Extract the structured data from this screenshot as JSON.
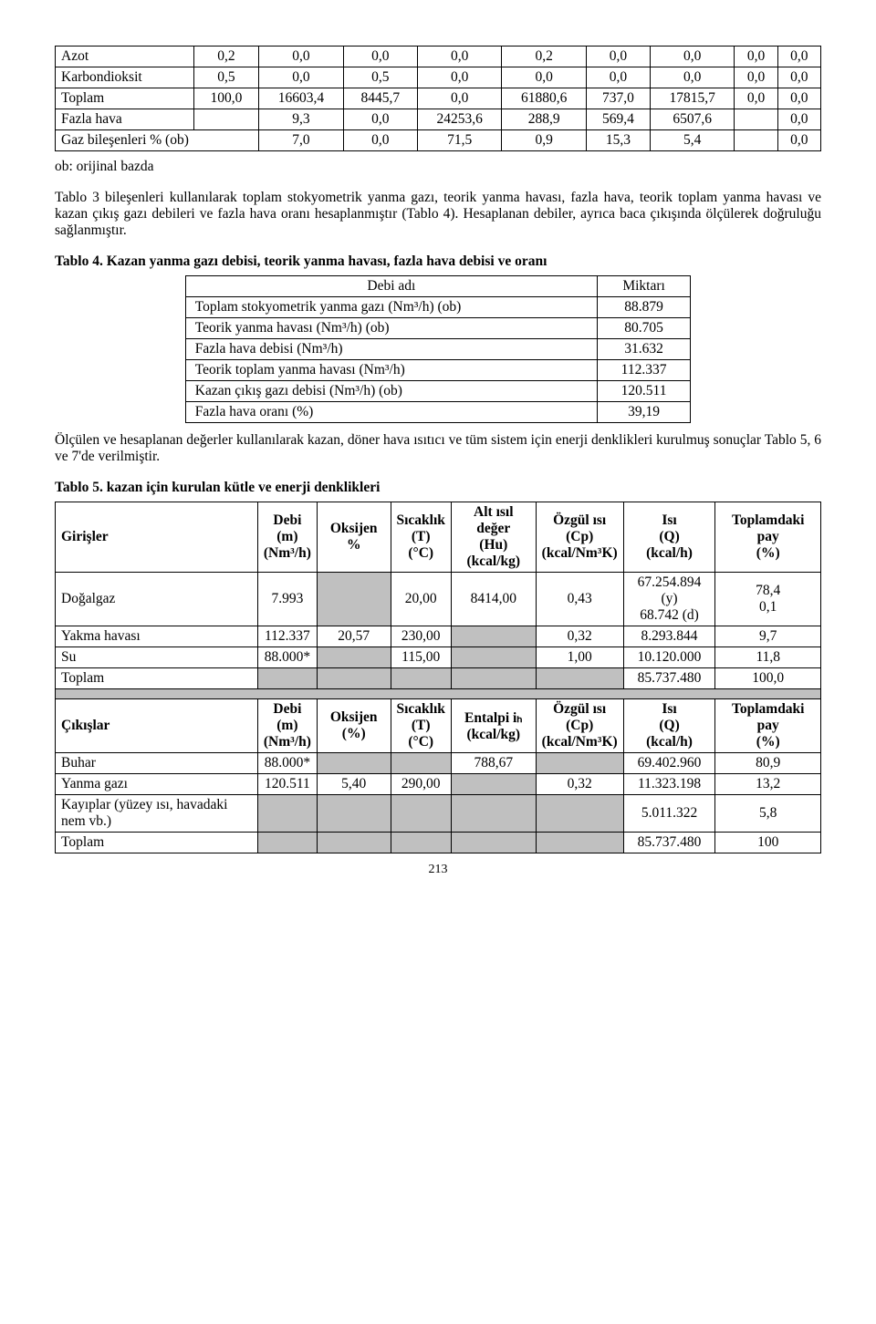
{
  "table1": {
    "rows": [
      {
        "label": "Azot",
        "vals": [
          "0,2",
          "0,0",
          "0,0",
          "0,0",
          "0,2",
          "0,0",
          "0,0",
          "0,0",
          "0,0"
        ]
      },
      {
        "label": "Karbondioksit",
        "vals": [
          "0,5",
          "0,0",
          "0,5",
          "0,0",
          "0,0",
          "0,0",
          "0,0",
          "0,0",
          "0,0"
        ]
      },
      {
        "label": "Toplam",
        "vals": [
          "100,0",
          "16603,4",
          "8445,7",
          "0,0",
          "61880,6",
          "737,0",
          "17815,7",
          "0,0",
          "0,0"
        ]
      },
      {
        "label": "Fazla hava",
        "vals": [
          "",
          "9,3",
          "0,0",
          "24253,6",
          "288,9",
          "569,4",
          "6507,6",
          "",
          "0,0"
        ]
      }
    ],
    "gaz_row": {
      "label": "Gaz bileşenleri % (ob)",
      "vals": [
        "7,0",
        "0,0",
        "71,5",
        "0,9",
        "15,3",
        "5,4",
        "",
        "0,0"
      ]
    }
  },
  "note1": "ob: orijinal bazda",
  "para1": "Tablo 3 bileşenleri kullanılarak toplam stokyometrik yanma gazı, teorik yanma havası, fazla hava, teorik toplam yanma havası ve kazan çıkış gazı debileri ve fazla hava oranı hesaplanmıştır (Tablo 4). Hesaplanan debiler, ayrıca baca çıkışında ölçülerek doğruluğu sağlanmıştır.",
  "table4_caption": "Tablo 4. Kazan yanma gazı debisi, teorik yanma havası, fazla hava debisi ve oranı",
  "table4": {
    "header": [
      "Debi adı",
      "Miktarı"
    ],
    "rows": [
      [
        "Toplam stokyometrik yanma gazı (Nm³/h) (ob)",
        "88.879"
      ],
      [
        "Teorik yanma havası (Nm³/h) (ob)",
        "80.705"
      ],
      [
        "Fazla hava debisi (Nm³/h)",
        "31.632"
      ],
      [
        "Teorik toplam yanma havası (Nm³/h)",
        "112.337"
      ],
      [
        "Kazan çıkış gazı debisi (Nm³/h) (ob)",
        "120.511"
      ],
      [
        "Fazla hava oranı (%)",
        "39,19"
      ]
    ]
  },
  "para2": "Ölçülen ve hesaplanan değerler kullanılarak kazan, döner hava ısıtıcı ve tüm sistem için enerji denklikleri kurulmuş sonuçlar Tablo 5, 6 ve 7'de verilmiştir.",
  "table5_caption": "Tablo 5. kazan için kurulan kütle ve enerji denklikleri",
  "table5": {
    "head1": [
      "Girişler",
      "Debi (m) (Nm³/h)",
      "Oksijen %",
      "Sıcaklık (T) (°C)",
      "Alt ısıl değer (Hu) (kcal/kg)",
      "Özgül ısı (Cp) (kcal/Nm³K)",
      "Isı (Q) (kcal/h)",
      "Toplamdaki pay (%)"
    ],
    "girisler": [
      {
        "label": "Doğalgaz",
        "debi": "7.993",
        "oks": "",
        "sic": "20,00",
        "hu": "8414,00",
        "cp": "0,43",
        "isi": "67.254.894 (y)\n68.742 (d)",
        "pay": "78,4\n0,1",
        "shade_oks": true
      },
      {
        "label": "Yakma havası",
        "debi": "112.337",
        "oks": "20,57",
        "sic": "230,00",
        "hu": "",
        "cp": "0,32",
        "isi": "8.293.844",
        "pay": "9,7",
        "shade_hu": true
      },
      {
        "label": "Su",
        "debi": "88.000*",
        "oks": "",
        "sic": "115,00",
        "hu": "",
        "cp": "1,00",
        "isi": "10.120.000",
        "pay": "11,8",
        "shade_oks": true,
        "shade_hu": true
      },
      {
        "label": "Toplam",
        "debi": "",
        "oks": "",
        "sic": "",
        "hu": "",
        "cp": "",
        "isi": "85.737.480",
        "pay": "100,0",
        "shade_span": true
      }
    ],
    "head2": [
      "Çıkışlar",
      "Debi (m) (Nm³/h)",
      "Oksijen (%)",
      "Sıcaklık (T) (°C)",
      "Entalpi iₕ (kcal/kg)",
      "Özgül ısı (Cp) (kcal/Nm³K)",
      "Isı (Q) (kcal/h)",
      "Toplamdaki pay (%)"
    ],
    "cikislar": [
      {
        "label": "Buhar",
        "debi": "88.000*",
        "oks": "",
        "sic": "",
        "ent": "788,67",
        "cp": "",
        "isi": "69.402.960",
        "pay": "80,9",
        "shade_oks": true,
        "shade_sic": true,
        "shade_cp": true
      },
      {
        "label": "Yanma gazı",
        "debi": "120.511",
        "oks": "5,40",
        "sic": "290,00",
        "ent": "",
        "cp": "0,32",
        "isi": "11.323.198",
        "pay": "13,2",
        "shade_ent": true
      },
      {
        "label": "Kayıplar (yüzey ısı, havadaki nem vb.)",
        "debi": "",
        "oks": "",
        "sic": "",
        "ent": "",
        "cp": "",
        "isi": "5.011.322",
        "pay": "5,8",
        "shade_span": true
      },
      {
        "label": "Toplam",
        "debi": "",
        "oks": "",
        "sic": "",
        "ent": "",
        "cp": "",
        "isi": "85.737.480",
        "pay": "100",
        "shade_span": true
      }
    ]
  },
  "page_number": "213"
}
